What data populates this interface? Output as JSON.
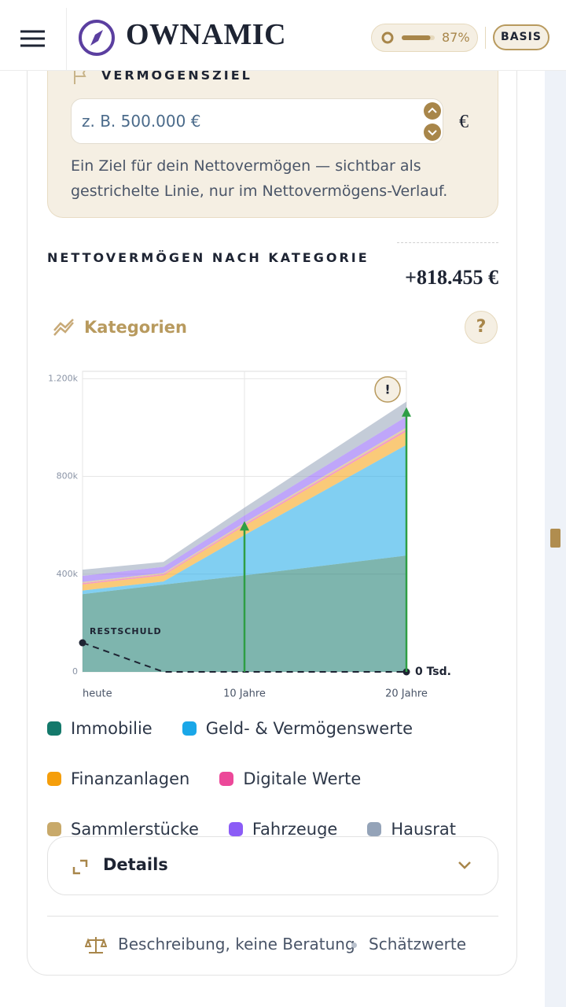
{
  "header": {
    "brand": "OWNAMIC",
    "progress": {
      "value": 87,
      "label": "87%"
    },
    "badge": "BASIS"
  },
  "goal": {
    "title": "VERMÖGENSZIEL",
    "placeholder": "z. B. 500.000 €",
    "currency": "€",
    "hint": "Ein Ziel für dein Nettovermögen — sichtbar als gestrichelte Linie, nur im Nettovermögens-Verlauf."
  },
  "section": {
    "title": "NETTOVERMÖGEN NACH KATEGORIE",
    "total": "+818.455 €",
    "toggle": "Kategorien",
    "help": "?"
  },
  "chart_data": {
    "type": "stacked_area",
    "x": [
      0,
      5,
      10,
      20
    ],
    "xlim": [
      0,
      20
    ],
    "xticks": [
      {
        "value": 0,
        "label": "heute"
      },
      {
        "value": 10,
        "label": "10 Jahre"
      },
      {
        "value": 20,
        "label": "20 Jahre"
      }
    ],
    "ylim": [
      0,
      1230
    ],
    "yticks": [
      0,
      {
        "value": 400,
        "label": "400k"
      },
      {
        "value": 800,
        "label": "800k"
      },
      {
        "value": 1200,
        "label": "1.200k"
      }
    ],
    "grid": true,
    "series": [
      {
        "name": "Immobilie",
        "color": "#14796b",
        "values": [
          318,
          357,
          395,
          476
        ]
      },
      {
        "name": "Geld- & Vermögenswerte",
        "color": "#1aa7e8",
        "values": [
          15,
          13,
          165,
          453
        ]
      },
      {
        "name": "Finanzanlagen",
        "color": "#f59e0b",
        "values": [
          25,
          25,
          38,
          55
        ]
      },
      {
        "name": "Digitale Werte",
        "color": "#ec4899",
        "values": [
          5,
          5,
          6,
          8
        ]
      },
      {
        "name": "Sammlerstücke",
        "color": "#c8a96a",
        "values": [
          5,
          5,
          6,
          8
        ]
      },
      {
        "name": "Fahrzeuge",
        "color": "#8b5cf6",
        "values": [
          25,
          25,
          30,
          45
        ]
      },
      {
        "name": "Hausrat",
        "color": "#94a3b8",
        "values": [
          25,
          20,
          32,
          61
        ]
      }
    ],
    "debt": {
      "label": "RESTSCHULD",
      "end_label": "0 Tsd.",
      "values": [
        119,
        0,
        0,
        0
      ]
    },
    "arrows": {
      "x": [
        10,
        20
      ],
      "values": [
        617,
        1083
      ],
      "color": "#2e9e44"
    },
    "warning": "!"
  },
  "details": "Details",
  "footer": {
    "disclaimer": "Beschreibung, keine Beratung",
    "note": "Schätzwerte"
  }
}
